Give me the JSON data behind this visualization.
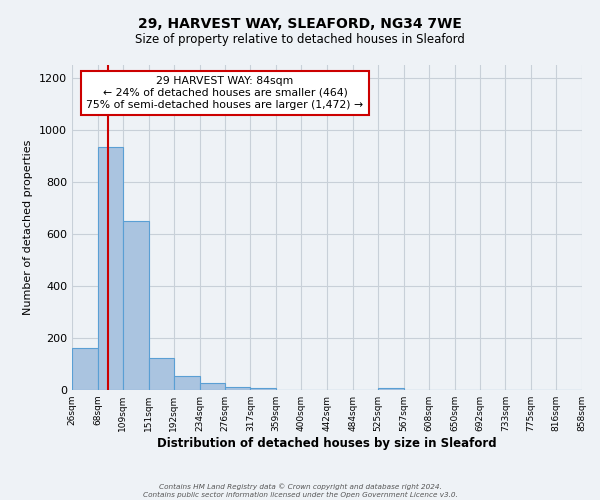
{
  "title": "29, HARVEST WAY, SLEAFORD, NG34 7WE",
  "subtitle": "Size of property relative to detached houses in Sleaford",
  "xlabel": "Distribution of detached houses by size in Sleaford",
  "ylabel": "Number of detached properties",
  "bin_edges": [
    26,
    68,
    109,
    151,
    192,
    234,
    276,
    317,
    359,
    400,
    442,
    484,
    525,
    567,
    608,
    650,
    692,
    733,
    775,
    816,
    858
  ],
  "bar_heights": [
    160,
    935,
    650,
    125,
    55,
    27,
    10,
    8,
    0,
    0,
    0,
    0,
    8,
    0,
    0,
    0,
    0,
    0,
    0,
    0
  ],
  "bar_color": "#aac4e0",
  "bar_edge_color": "#5a9fd4",
  "bar_edge_width": 0.8,
  "ylim": [
    0,
    1250
  ],
  "yticks": [
    0,
    200,
    400,
    600,
    800,
    1000,
    1200
  ],
  "property_size": 84,
  "red_line_color": "#cc0000",
  "annotation_text": "29 HARVEST WAY: 84sqm\n← 24% of detached houses are smaller (464)\n75% of semi-detached houses are larger (1,472) →",
  "annotation_box_color": "#cc0000",
  "annotation_bg": "#ffffff",
  "grid_color": "#c8d0d8",
  "background_color": "#eef2f6",
  "tick_labels": [
    "26sqm",
    "68sqm",
    "109sqm",
    "151sqm",
    "192sqm",
    "234sqm",
    "276sqm",
    "317sqm",
    "359sqm",
    "400sqm",
    "442sqm",
    "484sqm",
    "525sqm",
    "567sqm",
    "608sqm",
    "650sqm",
    "692sqm",
    "733sqm",
    "775sqm",
    "816sqm",
    "858sqm"
  ],
  "footer_line1": "Contains HM Land Registry data © Crown copyright and database right 2024.",
  "footer_line2": "Contains public sector information licensed under the Open Government Licence v3.0."
}
